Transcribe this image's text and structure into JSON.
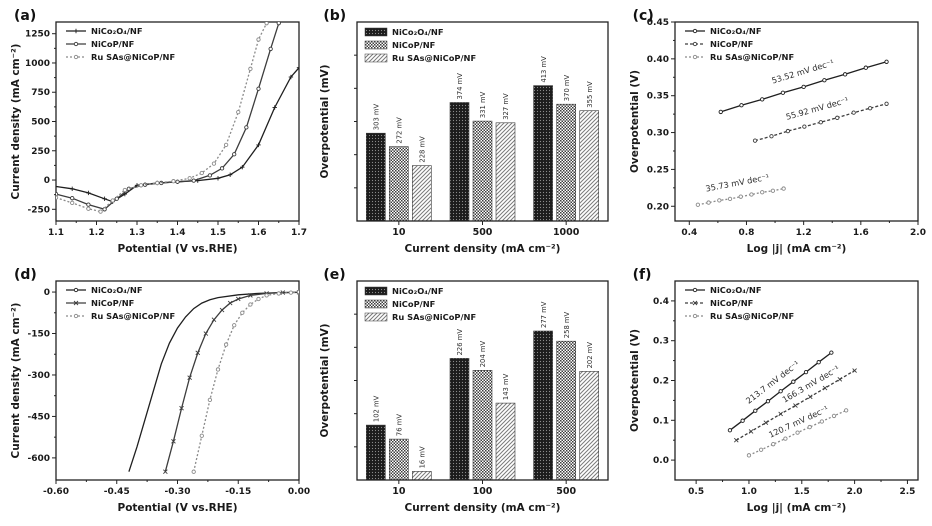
{
  "figure": {
    "background": "#ffffff"
  },
  "panels": [
    {
      "label": "(a)"
    },
    {
      "label": "(b)"
    },
    {
      "label": "(c)"
    },
    {
      "label": "(d)"
    },
    {
      "label": "(e)"
    },
    {
      "label": "(f)"
    }
  ],
  "series_names": [
    "NiCo₂O₄/NF",
    "NiCoP/NF",
    "Ru SAs@NiCoP/NF"
  ],
  "colors": {
    "series1": "#1f1f1f",
    "series2": "#3d3d3d",
    "series3": "#8a8a8a",
    "axis": "#222222"
  },
  "chart_data": [
    {
      "type": "line",
      "panel": "(a)",
      "xlabel": "Potential (V vs.RHE)",
      "ylabel": "Current density (mA cm⁻²)",
      "xlim": [
        1.1,
        1.7
      ],
      "ylim": [
        -350,
        1350
      ],
      "xticks": [
        1.1,
        1.2,
        1.3,
        1.4,
        1.5,
        1.6,
        1.7
      ],
      "xtick_labels": [
        "1.1",
        "1.2",
        "1.3",
        "1.4",
        "1.5",
        "1.6",
        "1.7"
      ],
      "yticks": [
        -250,
        0,
        250,
        500,
        750,
        1000,
        1250
      ],
      "ytick_labels": [
        "-250",
        "0",
        "250",
        "500",
        "750",
        "1000",
        "1250"
      ],
      "legend_position": "top-left",
      "series": [
        {
          "name": "NiCo₂O₄/NF",
          "color": "#1f1f1f",
          "dash": null,
          "marker": "plus",
          "points": [
            [
              1.1,
              -55
            ],
            [
              1.14,
              -75
            ],
            [
              1.18,
              -110
            ],
            [
              1.22,
              -160
            ],
            [
              1.24,
              -185
            ],
            [
              1.27,
              -120
            ],
            [
              1.3,
              -45
            ],
            [
              1.35,
              -25
            ],
            [
              1.4,
              -15
            ],
            [
              1.45,
              -5
            ],
            [
              1.5,
              15
            ],
            [
              1.53,
              45
            ],
            [
              1.56,
              110
            ],
            [
              1.6,
              300
            ],
            [
              1.64,
              620
            ],
            [
              1.68,
              880
            ],
            [
              1.7,
              960
            ]
          ]
        },
        {
          "name": "NiCoP/NF",
          "color": "#3d3d3d",
          "dash": null,
          "marker": "circle",
          "points": [
            [
              1.1,
              -120
            ],
            [
              1.14,
              -155
            ],
            [
              1.18,
              -210
            ],
            [
              1.22,
              -250
            ],
            [
              1.25,
              -160
            ],
            [
              1.28,
              -75
            ],
            [
              1.32,
              -40
            ],
            [
              1.36,
              -25
            ],
            [
              1.4,
              -15
            ],
            [
              1.44,
              -5
            ],
            [
              1.48,
              40
            ],
            [
              1.51,
              100
            ],
            [
              1.54,
              220
            ],
            [
              1.57,
              450
            ],
            [
              1.6,
              780
            ],
            [
              1.63,
              1120
            ],
            [
              1.65,
              1340
            ]
          ]
        },
        {
          "name": "Ru SAs@NiCoP/NF",
          "color": "#8a8a8a",
          "dash": "2,2",
          "marker": "circle",
          "points": [
            [
              1.1,
              -150
            ],
            [
              1.14,
              -195
            ],
            [
              1.18,
              -245
            ],
            [
              1.21,
              -270
            ],
            [
              1.24,
              -175
            ],
            [
              1.27,
              -85
            ],
            [
              1.31,
              -45
            ],
            [
              1.35,
              -25
            ],
            [
              1.39,
              -10
            ],
            [
              1.43,
              15
            ],
            [
              1.46,
              60
            ],
            [
              1.49,
              140
            ],
            [
              1.52,
              300
            ],
            [
              1.55,
              580
            ],
            [
              1.58,
              950
            ],
            [
              1.6,
              1200
            ],
            [
              1.62,
              1340
            ]
          ]
        }
      ]
    },
    {
      "type": "bar",
      "panel": "(b)",
      "xlabel": "Current density (mA cm⁻²)",
      "ylabel": "Overpotential (mV)",
      "categories": [
        "10",
        "500",
        "1000"
      ],
      "ybase": 100,
      "ymax": 560,
      "legend_position": "top-left",
      "series": [
        {
          "name": "NiCo₂O₄/NF",
          "pattern": 0,
          "values": [
            303,
            374,
            413
          ],
          "bar_labels": [
            "303 mV",
            "374 mV",
            "413 mV"
          ]
        },
        {
          "name": "NiCoP/NF",
          "pattern": 1,
          "values": [
            272,
            331,
            370
          ],
          "bar_labels": [
            "272 mV",
            "331 mV",
            "370 mV"
          ]
        },
        {
          "name": "Ru SAs@NiCoP/NF",
          "pattern": 2,
          "values": [
            228,
            327,
            355
          ],
          "bar_labels": [
            "228 mV",
            "327 mV",
            "355 mV"
          ]
        }
      ]
    },
    {
      "type": "line",
      "panel": "(c)",
      "xlabel": "Log |j| (mA cm⁻²)",
      "ylabel": "Overpotential (V)",
      "xlim": [
        0.3,
        2.0
      ],
      "ylim": [
        0.18,
        0.45
      ],
      "xticks": [
        0.4,
        0.8,
        1.2,
        1.6,
        2.0
      ],
      "xtick_labels": [
        "0.4",
        "0.8",
        "1.2",
        "1.6",
        "2.0"
      ],
      "yticks": [
        0.2,
        0.25,
        0.3,
        0.35,
        0.4,
        0.45
      ],
      "ytick_labels": [
        "0.20",
        "0.25",
        "0.30",
        "0.35",
        "0.40",
        "0.45"
      ],
      "legend_position": "top-left",
      "series": [
        {
          "name": "NiCo₂O₄/NF",
          "color": "#1f1f1f",
          "dash": null,
          "marker": "circle",
          "points": [
            [
              0.62,
              0.328
            ],
            [
              0.765,
              0.337
            ],
            [
              0.91,
              0.345
            ],
            [
              1.055,
              0.354
            ],
            [
              1.2,
              0.362
            ],
            [
              1.345,
              0.371
            ],
            [
              1.49,
              0.379
            ],
            [
              1.635,
              0.388
            ],
            [
              1.78,
              0.396
            ]
          ]
        },
        {
          "name": "NiCoP/NF",
          "color": "#3d3d3d",
          "dash": "3,2",
          "marker": "circle",
          "points": [
            [
              0.86,
              0.289
            ],
            [
              0.975,
              0.295
            ],
            [
              1.09,
              0.302
            ],
            [
              1.205,
              0.308
            ],
            [
              1.32,
              0.314
            ],
            [
              1.435,
              0.32
            ],
            [
              1.55,
              0.327
            ],
            [
              1.665,
              0.333
            ],
            [
              1.78,
              0.339
            ]
          ]
        },
        {
          "name": "Ru SAs@NiCoP/NF",
          "color": "#8a8a8a",
          "dash": "2,2",
          "marker": "circle",
          "points": [
            [
              0.46,
              0.202
            ],
            [
              0.535,
              0.205
            ],
            [
              0.61,
              0.208
            ],
            [
              0.685,
              0.21
            ],
            [
              0.76,
              0.213
            ],
            [
              0.835,
              0.216
            ],
            [
              0.91,
              0.219
            ],
            [
              0.985,
              0.221
            ],
            [
              1.06,
              0.224
            ]
          ]
        }
      ],
      "annotations": [
        {
          "series": 0,
          "x": 1.2,
          "y": 0.379,
          "text": "53.52 mV dec⁻¹"
        },
        {
          "series": 1,
          "x": 1.3,
          "y": 0.329,
          "text": "55.92 mV dec⁻¹"
        },
        {
          "series": 2,
          "x": 0.74,
          "y": 0.228,
          "text": "35.73 mV dec⁻¹"
        }
      ]
    },
    {
      "type": "line",
      "panel": "(d)",
      "xlabel": "Potential (V vs.RHE)",
      "ylabel": "Current density (mA cm⁻²)",
      "xlim": [
        -0.6,
        0.0
      ],
      "ylim": [
        -680,
        40
      ],
      "xticks": [
        -0.6,
        -0.45,
        -0.3,
        -0.15,
        0.0
      ],
      "xtick_labels": [
        "-0.60",
        "-0.45",
        "-0.30",
        "-0.15",
        "0.00"
      ],
      "yticks": [
        0,
        -150,
        -300,
        -450,
        -600
      ],
      "ytick_labels": [
        "0",
        "-150",
        "-300",
        "-450",
        "-600"
      ],
      "legend_position": "top-left",
      "series": [
        {
          "name": "NiCo₂O₄/NF",
          "color": "#1f1f1f",
          "dash": null,
          "marker": null,
          "points": [
            [
              -0.42,
              -650
            ],
            [
              -0.4,
              -560
            ],
            [
              -0.38,
              -460
            ],
            [
              -0.36,
              -360
            ],
            [
              -0.34,
              -260
            ],
            [
              -0.32,
              -185
            ],
            [
              -0.3,
              -130
            ],
            [
              -0.28,
              -90
            ],
            [
              -0.26,
              -60
            ],
            [
              -0.24,
              -40
            ],
            [
              -0.22,
              -28
            ],
            [
              -0.2,
              -20
            ],
            [
              -0.15,
              -10
            ],
            [
              -0.1,
              -5
            ],
            [
              -0.05,
              -2
            ],
            [
              0,
              -1
            ]
          ]
        },
        {
          "name": "NiCoP/NF",
          "color": "#3d3d3d",
          "dash": null,
          "marker": "cross",
          "points": [
            [
              -0.33,
              -650
            ],
            [
              -0.31,
              -540
            ],
            [
              -0.29,
              -420
            ],
            [
              -0.27,
              -310
            ],
            [
              -0.25,
              -220
            ],
            [
              -0.23,
              -150
            ],
            [
              -0.21,
              -100
            ],
            [
              -0.19,
              -65
            ],
            [
              -0.17,
              -40
            ],
            [
              -0.15,
              -25
            ],
            [
              -0.12,
              -12
            ],
            [
              -0.08,
              -5
            ],
            [
              -0.04,
              -2
            ],
            [
              0,
              -1
            ]
          ]
        },
        {
          "name": "Ru SAs@NiCoP/NF",
          "color": "#8a8a8a",
          "dash": "2,2",
          "marker": "circle",
          "points": [
            [
              -0.26,
              -650
            ],
            [
              -0.24,
              -520
            ],
            [
              -0.22,
              -390
            ],
            [
              -0.2,
              -280
            ],
            [
              -0.18,
              -190
            ],
            [
              -0.16,
              -120
            ],
            [
              -0.14,
              -75
            ],
            [
              -0.12,
              -45
            ],
            [
              -0.1,
              -25
            ],
            [
              -0.08,
              -12
            ],
            [
              -0.05,
              -5
            ],
            [
              -0.02,
              -2
            ],
            [
              0,
              0
            ]
          ]
        }
      ]
    },
    {
      "type": "bar",
      "panel": "(e)",
      "xlabel": "Current density (mA cm⁻²)",
      "ylabel": "Overpotential (mV)",
      "categories": [
        "10",
        "100",
        "500"
      ],
      "ybase": 0,
      "ymax": 370,
      "legend_position": "top-left",
      "series": [
        {
          "name": "NiCo₂O₄/NF",
          "pattern": 0,
          "values": [
            102,
            226,
            277
          ],
          "bar_labels": [
            "102 mV",
            "226 mV",
            "277 mV"
          ]
        },
        {
          "name": "NiCoP/NF",
          "pattern": 1,
          "values": [
            76,
            204,
            258
          ],
          "bar_labels": [
            "76 mV",
            "204 mV",
            "258 mV"
          ]
        },
        {
          "name": "Ru SAs@NiCoP/NF",
          "pattern": 2,
          "values": [
            16,
            143,
            202
          ],
          "bar_labels": [
            "16 mV",
            "143 mV",
            "202 mV"
          ]
        }
      ]
    },
    {
      "type": "line",
      "panel": "(f)",
      "xlabel": "Log |j| (mA cm⁻²)",
      "ylabel": "Overpotential (V)",
      "xlim": [
        0.3,
        2.6
      ],
      "ylim": [
        -0.05,
        0.45
      ],
      "xticks": [
        0.5,
        1.0,
        1.5,
        2.0,
        2.5
      ],
      "xtick_labels": [
        "0.5",
        "1.0",
        "1.5",
        "2.0",
        "2.5"
      ],
      "yticks": [
        0.0,
        0.1,
        0.2,
        0.3,
        0.4
      ],
      "ytick_labels": [
        "0.0",
        "0.1",
        "0.2",
        "0.3",
        "0.4"
      ],
      "legend_position": "top-left",
      "series": [
        {
          "name": "NiCo₂O₄/NF",
          "color": "#1f1f1f",
          "dash": null,
          "marker": "circle",
          "points": [
            [
              0.82,
              0.075
            ],
            [
              0.94,
              0.099
            ],
            [
              1.06,
              0.124
            ],
            [
              1.18,
              0.148
            ],
            [
              1.3,
              0.173
            ],
            [
              1.42,
              0.197
            ],
            [
              1.54,
              0.221
            ],
            [
              1.66,
              0.246
            ],
            [
              1.78,
              0.27
            ]
          ]
        },
        {
          "name": "NiCoP/NF",
          "color": "#3d3d3d",
          "dash": "3,2",
          "marker": "cross",
          "points": [
            [
              0.88,
              0.05
            ],
            [
              1.02,
              0.072
            ],
            [
              1.16,
              0.094
            ],
            [
              1.3,
              0.116
            ],
            [
              1.44,
              0.137
            ],
            [
              1.58,
              0.159
            ],
            [
              1.72,
              0.181
            ],
            [
              1.86,
              0.203
            ],
            [
              2.0,
              0.225
            ]
          ]
        },
        {
          "name": "Ru SAs@NiCoP/NF",
          "color": "#8a8a8a",
          "dash": "2,2",
          "marker": "circle",
          "points": [
            [
              1.0,
              0.012
            ],
            [
              1.115,
              0.026
            ],
            [
              1.23,
              0.04
            ],
            [
              1.345,
              0.054
            ],
            [
              1.46,
              0.069
            ],
            [
              1.575,
              0.083
            ],
            [
              1.69,
              0.097
            ],
            [
              1.805,
              0.111
            ],
            [
              1.92,
              0.125
            ]
          ]
        }
      ],
      "annotations": [
        {
          "series": 0,
          "x": 1.24,
          "y": 0.19,
          "text": "213.7 mV dec⁻¹"
        },
        {
          "series": 1,
          "x": 1.6,
          "y": 0.185,
          "text": "166.3 mV dec⁻¹"
        },
        {
          "series": 2,
          "x": 1.48,
          "y": 0.09,
          "text": "120.7 mV dec⁻¹"
        }
      ]
    }
  ]
}
